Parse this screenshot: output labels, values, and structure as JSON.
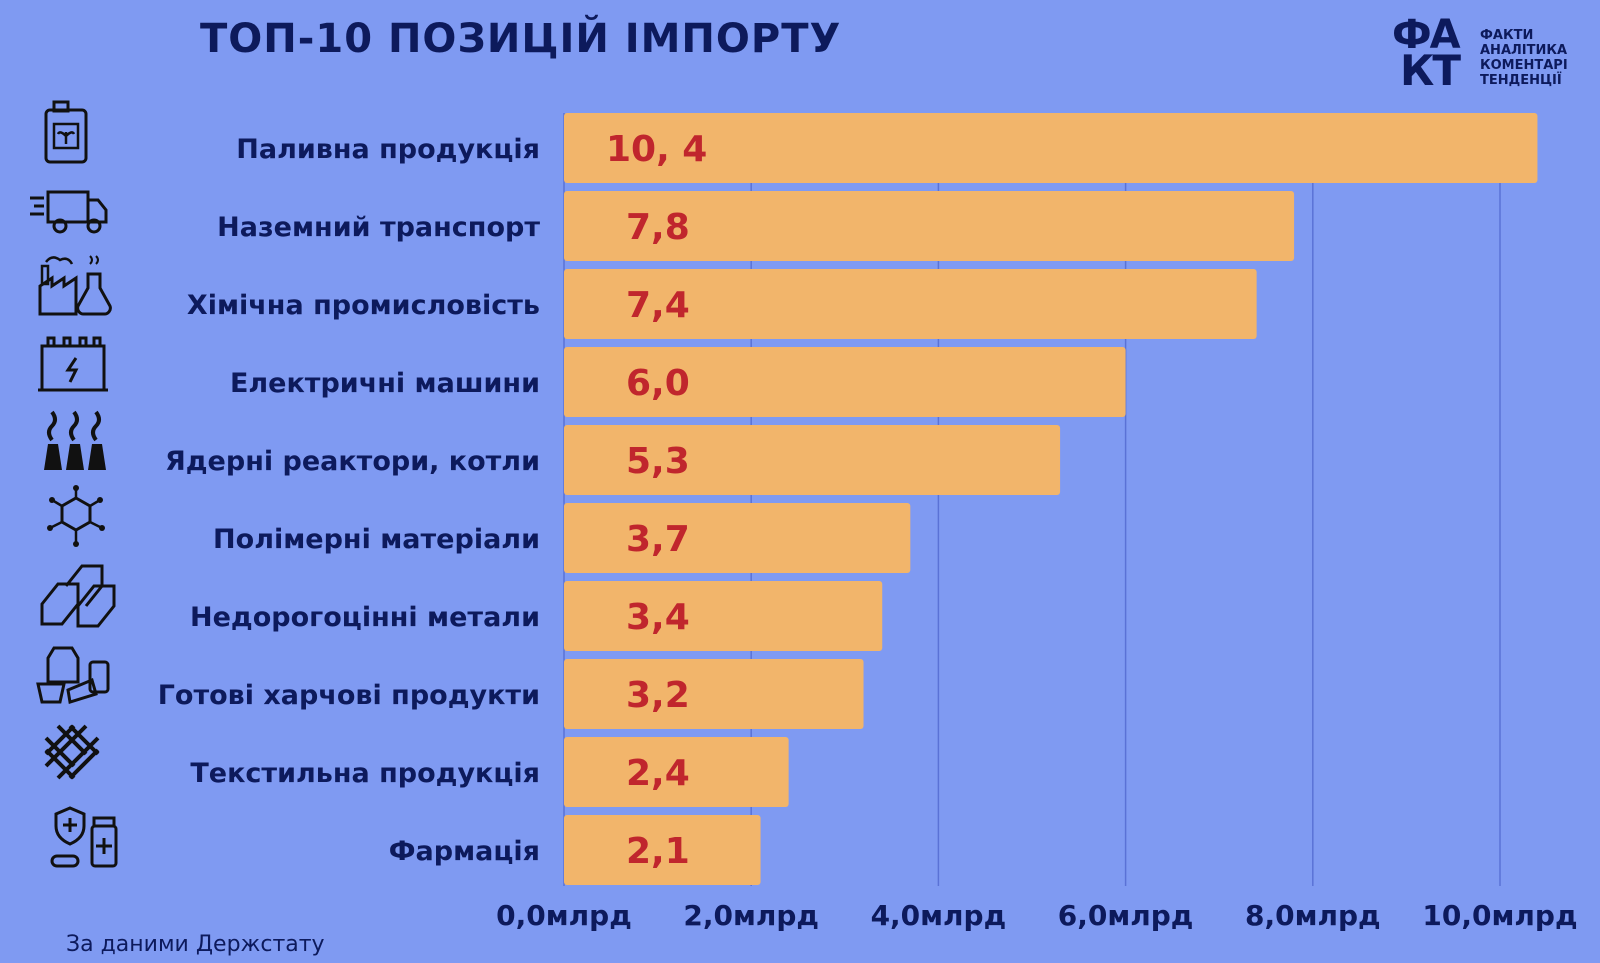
{
  "header": {
    "title": "ТОП-10 ПОЗИЦІЙ ІМПОРТУ"
  },
  "logo": {
    "mark_line1": "ФА",
    "mark_line2": "КТ",
    "words": [
      "ФАКТИ",
      "АНАЛІТИКА",
      "КОМЕНТАРІ",
      "ТЕНДЕНЦІЇ"
    ]
  },
  "footer": {
    "source": "За даними Держстату"
  },
  "icons": [
    "fuel-canister-icon",
    "delivery-truck-icon",
    "chemical-factory-icon",
    "battery-icon",
    "nuclear-plant-icon",
    "molecule-icon",
    "metal-ingots-icon",
    "food-products-icon",
    "textile-weave-icon",
    "pharmacy-icon"
  ],
  "colors": {
    "background": "#7f9af2",
    "bar": "#f2b56b",
    "value_text": "#c0262d",
    "text": "#0d1a5c",
    "grid": "#5a72d6"
  },
  "chart_data": {
    "type": "bar",
    "orientation": "horizontal",
    "categories": [
      "Паливна продукція",
      "Наземний транспорт",
      "Хімічна промисловість",
      "Електричні машини",
      "Ядерні реактори, котли",
      "Полімерні матеріали",
      "Недорогоцінні метали",
      "Готові харчові продукти",
      "Текстильна продукція",
      "Фармація"
    ],
    "values": [
      10.4,
      7.8,
      7.4,
      6.0,
      5.3,
      3.7,
      3.4,
      3.2,
      2.4,
      2.1
    ],
    "value_labels": [
      "10, 4",
      "7,8",
      "7,4",
      "6,0",
      "5,3",
      "3,7",
      "3,4",
      "3,2",
      "2,4",
      "2,1"
    ],
    "ticks": [
      0,
      2,
      4,
      6,
      8,
      10
    ],
    "tick_labels": [
      "0,0млрд",
      "2,0млрд",
      "4,0млрд",
      "6,0млрд",
      "8,0млрд",
      "10,0млрд"
    ],
    "xlim": [
      0,
      10
    ],
    "grid": true,
    "legend": "none"
  }
}
